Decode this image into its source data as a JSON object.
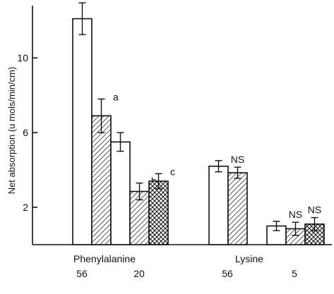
{
  "chart_data": {
    "type": "bar",
    "title": "",
    "xlabel": "",
    "ylabel": "Net absorption (u mols/min/cm)",
    "ylim": [
      0,
      12.8
    ],
    "yticks": [
      2,
      6,
      10
    ],
    "groups": [
      {
        "name": "Phenylalanine",
        "concentrations": [
          "56",
          "20"
        ],
        "bars": [
          {
            "concentration": "56",
            "pattern": "open",
            "value": 12.1,
            "error": 0.85,
            "annotation": ""
          },
          {
            "concentration": "56",
            "pattern": "hatched",
            "value": 6.9,
            "error": 0.9,
            "annotation": "a"
          },
          {
            "concentration": "20",
            "pattern": "open",
            "value": 5.5,
            "error": 0.5,
            "annotation": ""
          },
          {
            "concentration": "20",
            "pattern": "hatched",
            "value": 2.85,
            "error": 0.45,
            "annotation": "b"
          },
          {
            "concentration": "20",
            "pattern": "crosshatched",
            "value": 3.4,
            "error": 0.4,
            "annotation": "c"
          }
        ]
      },
      {
        "name": "Lysine",
        "concentrations": [
          "56",
          "5"
        ],
        "bars": [
          {
            "concentration": "56",
            "pattern": "open",
            "value": 4.2,
            "error": 0.3,
            "annotation": ""
          },
          {
            "concentration": "56",
            "pattern": "hatched",
            "value": 3.85,
            "error": 0.3,
            "annotation": "NS"
          },
          {
            "concentration": "5",
            "pattern": "open",
            "value": 1.0,
            "error": 0.25,
            "annotation": ""
          },
          {
            "concentration": "5",
            "pattern": "hatched",
            "value": 0.85,
            "error": 0.35,
            "annotation": "NS"
          },
          {
            "concentration": "5",
            "pattern": "crosshatched",
            "value": 1.1,
            "error": 0.35,
            "annotation": "NS"
          }
        ]
      }
    ],
    "grid": false,
    "legend": "none",
    "colors": {
      "stroke": "#111111",
      "fill": "#ffffff"
    }
  }
}
